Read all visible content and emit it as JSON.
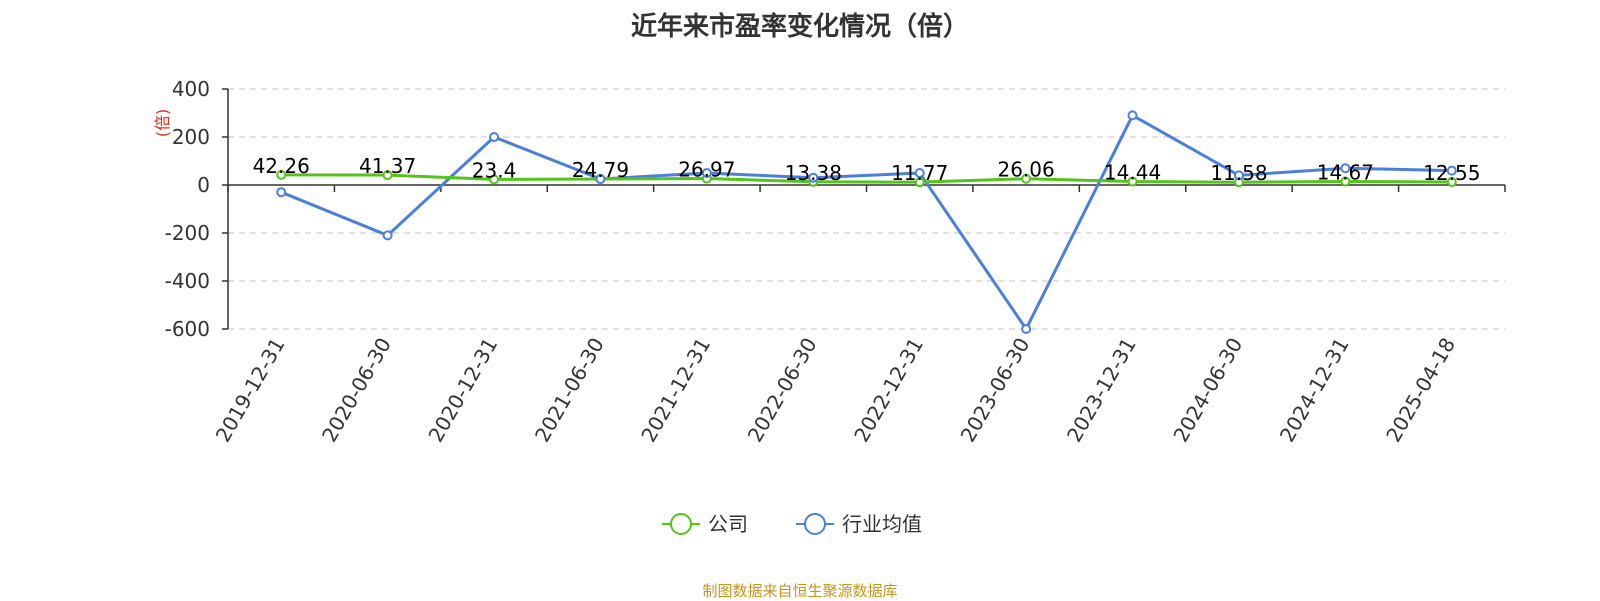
{
  "chart_data": {
    "type": "line",
    "title": "近年来市盈率变化情况（倍）",
    "ylabel": "(倍)",
    "ylim": [
      -600,
      400
    ],
    "yticks": [
      400,
      200,
      0,
      -200,
      -400,
      -600
    ],
    "categories": [
      "2019-12-31",
      "2020-06-30",
      "2020-12-31",
      "2021-06-30",
      "2021-12-31",
      "2022-06-30",
      "2022-12-31",
      "2023-06-30",
      "2023-12-31",
      "2024-06-30",
      "2024-12-31",
      "2025-04-18"
    ],
    "series": [
      {
        "name": "公司",
        "color": "#52c41a",
        "values": [
          42.26,
          41.37,
          23.4,
          24.79,
          26.97,
          13.38,
          11.77,
          26.06,
          14.44,
          11.58,
          14.67,
          12.55
        ],
        "labels": [
          "42.26",
          "41.37",
          "23.4",
          "24.79",
          "26.97",
          "13.38",
          "11.77",
          "26.06",
          "14.44",
          "11.58",
          "14.67",
          "12.55"
        ]
      },
      {
        "name": "行业均值",
        "color": "#4a7fdb",
        "values": [
          -30,
          -210,
          200,
          25,
          50,
          30,
          50,
          -600,
          290,
          40,
          70,
          60
        ]
      }
    ],
    "grid": true,
    "legend_position": "bottom-center"
  },
  "footer": {
    "source": "制图数据来自恒生聚源数据库"
  }
}
